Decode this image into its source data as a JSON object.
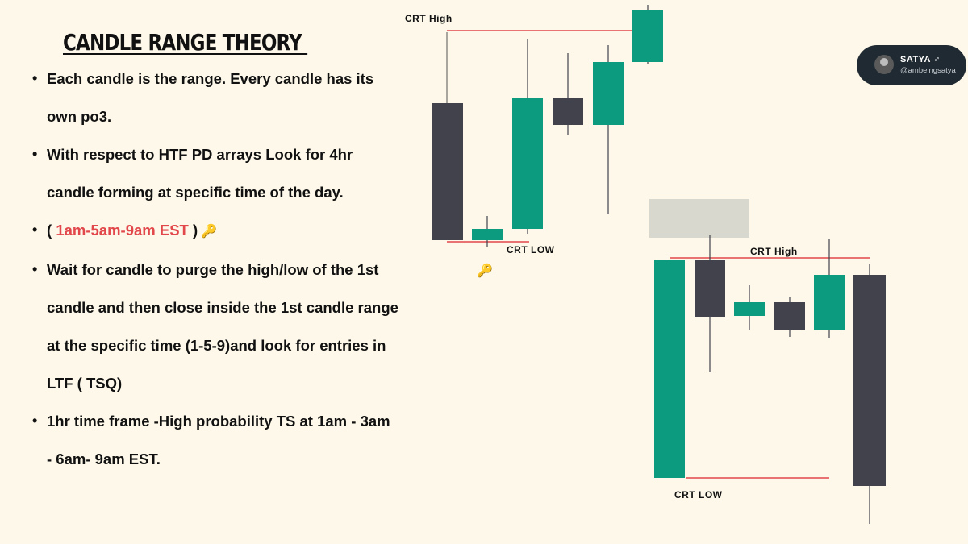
{
  "title": "CANDLE RANGE THEORY ",
  "bullets": [
    {
      "text": "Each candle is the range. Every candle has its"
    },
    {
      "text": "own po3."
    },
    {
      "text": "With respect to  HTF PD arrays Look for 4hr"
    },
    {
      "text": "candle forming at specific time of the day."
    },
    {
      "prefix": "( ",
      "highlight": "1am-5am-9am   EST",
      "suffix": "     )",
      "icon": "key-icon"
    },
    {
      "text": "Wait for  candle to purge the high/low of the 1st"
    },
    {
      "text": "candle and then close inside the 1st candle range"
    },
    {
      "text": "at the specific time (1-5-9)and look for entries in"
    },
    {
      "text": "LTF ( TSQ)"
    },
    {
      "text": "1hr time frame -High probability TS at 1am - 3am"
    },
    {
      "text": "- 6am- 9am EST."
    }
  ],
  "chart1": {
    "high_label": "CRT High",
    "low_label": "CRT LOW",
    "key_icon": "key-icon"
  },
  "chart2": {
    "high_label": "CRT High",
    "low_label": "CRT LOW"
  },
  "badge": {
    "name": "SATYA ♂",
    "handle": "@ambeingsatya",
    "avatar_icon": "avatar-icon"
  },
  "colors": {
    "bull": "#0c9b7f",
    "bear": "#41424c",
    "line": "#e2474b",
    "accent": "#e2474b",
    "background": "#fdf8e9",
    "box": "#d9d8ce"
  }
}
